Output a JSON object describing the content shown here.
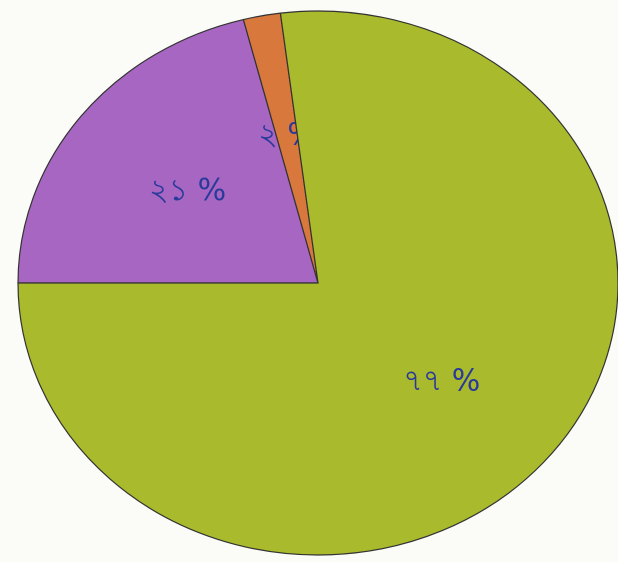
{
  "chart_data": {
    "type": "pie",
    "categories": [
      null,
      null,
      null
    ],
    "values": [
      21,
      2,
      77
    ],
    "value_labels": [
      "২১ %",
      "২ %",
      "৭৭ %"
    ],
    "colors": [
      "#a766c2",
      "#d9783c",
      "#a9ba2c"
    ]
  }
}
